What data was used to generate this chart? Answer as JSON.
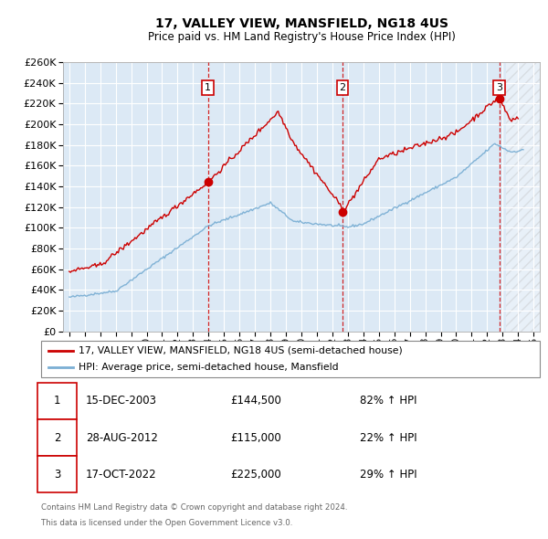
{
  "title": "17, VALLEY VIEW, MANSFIELD, NG18 4US",
  "subtitle": "Price paid vs. HM Land Registry's House Price Index (HPI)",
  "ylim": [
    0,
    260000
  ],
  "yticks": [
    0,
    20000,
    40000,
    60000,
    80000,
    100000,
    120000,
    140000,
    160000,
    180000,
    200000,
    220000,
    240000,
    260000
  ],
  "xlim_start": 1994.6,
  "xlim_end": 2025.4,
  "transactions": [
    {
      "num": 1,
      "date": "15-DEC-2003",
      "year": 2003.96,
      "price": 144500,
      "pct": "82%",
      "dir": "↑"
    },
    {
      "num": 2,
      "date": "28-AUG-2012",
      "year": 2012.66,
      "price": 115000,
      "pct": "22%",
      "dir": "↑"
    },
    {
      "num": 3,
      "date": "17-OCT-2022",
      "year": 2022.79,
      "price": 225000,
      "pct": "29%",
      "dir": "↑"
    }
  ],
  "legend_property": "17, VALLEY VIEW, MANSFIELD, NG18 4US (semi-detached house)",
  "legend_hpi": "HPI: Average price, semi-detached house, Mansfield",
  "footer_line1": "Contains HM Land Registry data © Crown copyright and database right 2024.",
  "footer_line2": "This data is licensed under the Open Government Licence v3.0.",
  "property_color": "#cc0000",
  "hpi_color": "#7bafd4",
  "bg_color": "#dce9f5",
  "grid_color": "#ffffff",
  "marker_box_color": "#cc0000"
}
